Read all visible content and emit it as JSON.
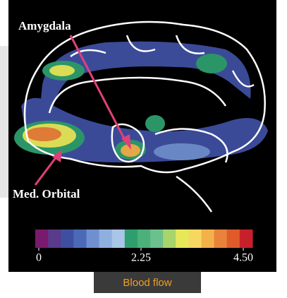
{
  "image": {
    "labels": [
      "Amygdala",
      "Med. Orbital"
    ]
  },
  "colorbar": {
    "range": [
      0,
      4.5
    ],
    "ticks": [
      0,
      2.25,
      {
        "value": 4.5,
        "label": "4.50"
      }
    ],
    "colors": [
      "#7a1a6e",
      "#5a3a8a",
      "#3f4fa0",
      "#4a6ab8",
      "#6f8fcf",
      "#8fb0df",
      "#a9c6e8",
      "#2e9e6e",
      "#4cb07a",
      "#6cc08c",
      "#a7d56b",
      "#e6e85a",
      "#f5d860",
      "#f3b14a",
      "#e9823a",
      "#e05a2a",
      "#c8202a"
    ]
  },
  "caption": "Blood flow"
}
